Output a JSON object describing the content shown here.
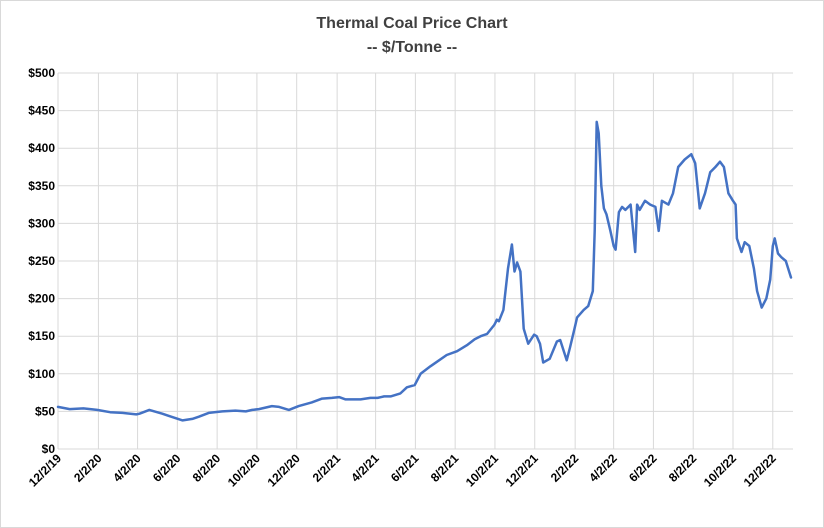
{
  "chart_data": {
    "type": "line",
    "title": "Thermal Coal Price Chart",
    "subtitle": "-- $/Tonne --",
    "ylim": [
      0,
      500
    ],
    "y_ticks": [
      0,
      50,
      100,
      150,
      200,
      250,
      300,
      350,
      400,
      450,
      500
    ],
    "y_tick_labels": [
      "$0",
      "$50",
      "$100",
      "$150",
      "$200",
      "$250",
      "$300",
      "$350",
      "$400",
      "$450",
      "$500"
    ],
    "x_range": [
      "2019-12-02",
      "2023-01-02"
    ],
    "x_ticks": [
      "2019-12-02",
      "2020-02-02",
      "2020-04-02",
      "2020-06-02",
      "2020-08-02",
      "2020-10-02",
      "2020-12-02",
      "2021-02-02",
      "2021-04-02",
      "2021-06-02",
      "2021-08-02",
      "2021-10-02",
      "2021-12-02",
      "2022-02-02",
      "2022-04-02",
      "2022-06-02",
      "2022-08-02",
      "2022-10-02",
      "2022-12-02"
    ],
    "x_tick_labels": [
      "12/2/19",
      "2/2/20",
      "4/2/20",
      "6/2/20",
      "8/2/20",
      "10/2/20",
      "12/2/20",
      "2/2/21",
      "4/2/21",
      "6/2/21",
      "8/2/21",
      "10/2/21",
      "12/2/21",
      "2/2/22",
      "4/2/22",
      "6/2/22",
      "8/2/22",
      "10/2/22",
      "12/2/22"
    ],
    "grid": true,
    "legend": "none",
    "series_color": "#4472c4",
    "series": [
      {
        "x": [
          "2019-12-02",
          "2019-12-20",
          "2020-01-10",
          "2020-01-31",
          "2020-02-20",
          "2020-03-10",
          "2020-03-31",
          "2020-04-05",
          "2020-04-20",
          "2020-05-10",
          "2020-05-20",
          "2020-06-10",
          "2020-06-25",
          "2020-07-05",
          "2020-07-20",
          "2020-08-10",
          "2020-08-30",
          "2020-09-15",
          "2020-09-25",
          "2020-10-05",
          "2020-10-25",
          "2020-11-05",
          "2020-11-20",
          "2020-12-05",
          "2020-12-25",
          "2021-01-10",
          "2021-01-25",
          "2021-02-05",
          "2021-02-15",
          "2021-02-25",
          "2021-03-10",
          "2021-03-25",
          "2021-04-05",
          "2021-04-15",
          "2021-04-25",
          "2021-05-10",
          "2021-05-20",
          "2021-06-01",
          "2021-06-10",
          "2021-06-25",
          "2021-07-05",
          "2021-07-20",
          "2021-08-05",
          "2021-08-20",
          "2021-09-01",
          "2021-09-10",
          "2021-09-20",
          "2021-10-01",
          "2021-10-05",
          "2021-10-08",
          "2021-10-15",
          "2021-10-22",
          "2021-10-28",
          "2021-11-01",
          "2021-11-05",
          "2021-11-10",
          "2021-11-15",
          "2021-11-22",
          "2021-12-01",
          "2021-12-05",
          "2021-12-10",
          "2021-12-15",
          "2021-12-25",
          "2022-01-05",
          "2022-01-10",
          "2022-01-20",
          "2022-01-25",
          "2022-02-01",
          "2022-02-05",
          "2022-02-15",
          "2022-02-22",
          "2022-03-01",
          "2022-03-04",
          "2022-03-07",
          "2022-03-10",
          "2022-03-14",
          "2022-03-18",
          "2022-03-22",
          "2022-03-28",
          "2022-04-02",
          "2022-04-05",
          "2022-04-10",
          "2022-04-15",
          "2022-04-20",
          "2022-04-28",
          "2022-05-05",
          "2022-05-08",
          "2022-05-12",
          "2022-05-20",
          "2022-05-28",
          "2022-06-05",
          "2022-06-10",
          "2022-06-15",
          "2022-06-25",
          "2022-07-02",
          "2022-07-10",
          "2022-07-20",
          "2022-07-30",
          "2022-08-05",
          "2022-08-12",
          "2022-08-20",
          "2022-08-28",
          "2022-09-05",
          "2022-09-12",
          "2022-09-18",
          "2022-09-25",
          "2022-10-02",
          "2022-10-06",
          "2022-10-08",
          "2022-10-15",
          "2022-10-20",
          "2022-10-27",
          "2022-11-03",
          "2022-11-08",
          "2022-11-15",
          "2022-11-22",
          "2022-11-28",
          "2022-12-02",
          "2022-12-05",
          "2022-12-10",
          "2022-12-15",
          "2022-12-22",
          "2022-12-30"
        ],
        "y": [
          56,
          53,
          54,
          52,
          49,
          48,
          46,
          47,
          52,
          47,
          44,
          38,
          40,
          43,
          48,
          50,
          51,
          50,
          52,
          53,
          57,
          56,
          52,
          57,
          62,
          67,
          68,
          69,
          66,
          66,
          66,
          68,
          68,
          70,
          70,
          74,
          82,
          85,
          100,
          110,
          116,
          125,
          130,
          138,
          146,
          150,
          153,
          165,
          172,
          170,
          185,
          240,
          272,
          236,
          248,
          236,
          160,
          140,
          152,
          150,
          140,
          115,
          120,
          143,
          145,
          118,
          135,
          160,
          175,
          185,
          190,
          210,
          290,
          435,
          420,
          350,
          320,
          312,
          290,
          270,
          265,
          315,
          322,
          318,
          325,
          262,
          325,
          318,
          330,
          325,
          322,
          290,
          330,
          325,
          340,
          375,
          385,
          392,
          380,
          320,
          340,
          368,
          375,
          382,
          375,
          340,
          330,
          325,
          280,
          262,
          275,
          270,
          240,
          210,
          188,
          200,
          225,
          270,
          280,
          260,
          255,
          250,
          228
        ]
      }
    ]
  }
}
